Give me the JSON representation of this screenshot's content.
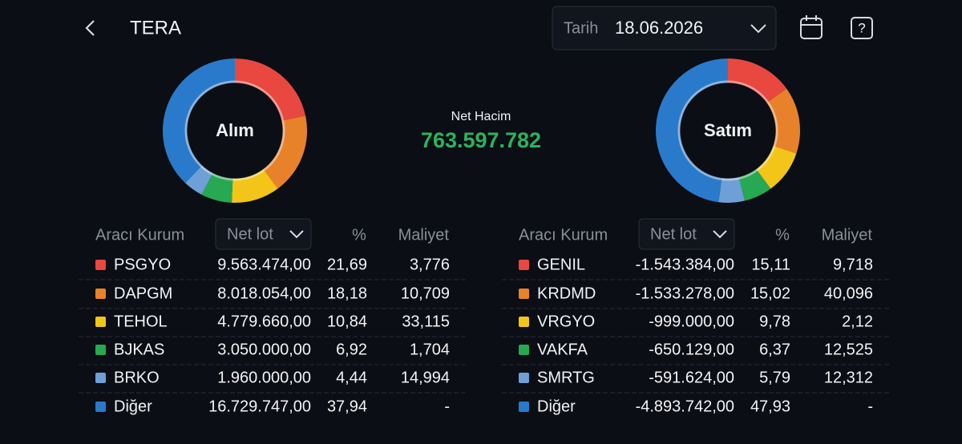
{
  "header": {
    "title": "TERA",
    "date_label": "Tarih",
    "date": "18.06.2026"
  },
  "summary": {
    "label": "Net Hacim",
    "value": "763.597.782"
  },
  "panels": [
    {
      "chart_label": "Alım",
      "columns": [
        "Aracı Kurum",
        "Net lot",
        "%",
        "Maliyet"
      ],
      "rows": [
        {
          "name": "PSGYO",
          "color": "#e8483f",
          "lot": "9.563.474,00",
          "pct": {
            "value": 21.69,
            "label": "21,69"
          },
          "cost": "3,776"
        },
        {
          "name": "DAPGM",
          "color": "#e8822a",
          "lot": "8.018.054,00",
          "pct": {
            "value": 18.18,
            "label": "18,18"
          },
          "cost": "10,709"
        },
        {
          "name": "TEHOL",
          "color": "#f2c518",
          "lot": "4.779.660,00",
          "pct": {
            "value": 10.84,
            "label": "10,84"
          },
          "cost": "33,115"
        },
        {
          "name": "BJKAS",
          "color": "#27a852",
          "lot": "3.050.000,00",
          "pct": {
            "value": 6.92,
            "label": "6,92"
          },
          "cost": "1,704"
        },
        {
          "name": "BRKO",
          "color": "#6e9fd6",
          "lot": "1.960.000,00",
          "pct": {
            "value": 4.44,
            "label": "4,44"
          },
          "cost": "14,994"
        },
        {
          "name": "Diğer",
          "color": "#2a7acb",
          "lot": "16.729.747,00",
          "pct": {
            "value": 37.94,
            "label": "37,94"
          },
          "cost": "-"
        }
      ]
    },
    {
      "chart_label": "Satım",
      "columns": [
        "Aracı Kurum",
        "Net lot",
        "%",
        "Maliyet"
      ],
      "rows": [
        {
          "name": "GENIL",
          "color": "#e8483f",
          "lot": "-1.543.384,00",
          "pct": {
            "value": 15.11,
            "label": "15,11"
          },
          "cost": "9,718"
        },
        {
          "name": "KRDMD",
          "color": "#e8822a",
          "lot": "-1.533.278,00",
          "pct": {
            "value": 15.02,
            "label": "15,02"
          },
          "cost": "40,096"
        },
        {
          "name": "VRGYO",
          "color": "#f2c518",
          "lot": "-999.000,00",
          "pct": {
            "value": 9.78,
            "label": "9,78"
          },
          "cost": "2,12"
        },
        {
          "name": "VAKFA",
          "color": "#27a852",
          "lot": "-650.129,00",
          "pct": {
            "value": 6.37,
            "label": "6,37"
          },
          "cost": "12,525"
        },
        {
          "name": "SMRTG",
          "color": "#6e9fd6",
          "lot": "-591.624,00",
          "pct": {
            "value": 5.79,
            "label": "5,79"
          },
          "cost": "12,312"
        },
        {
          "name": "Diğer",
          "color": "#2a7acb",
          "lot": "-4.893.742,00",
          "pct": {
            "value": 47.93,
            "label": "47,93"
          },
          "cost": "-"
        }
      ]
    }
  ]
}
